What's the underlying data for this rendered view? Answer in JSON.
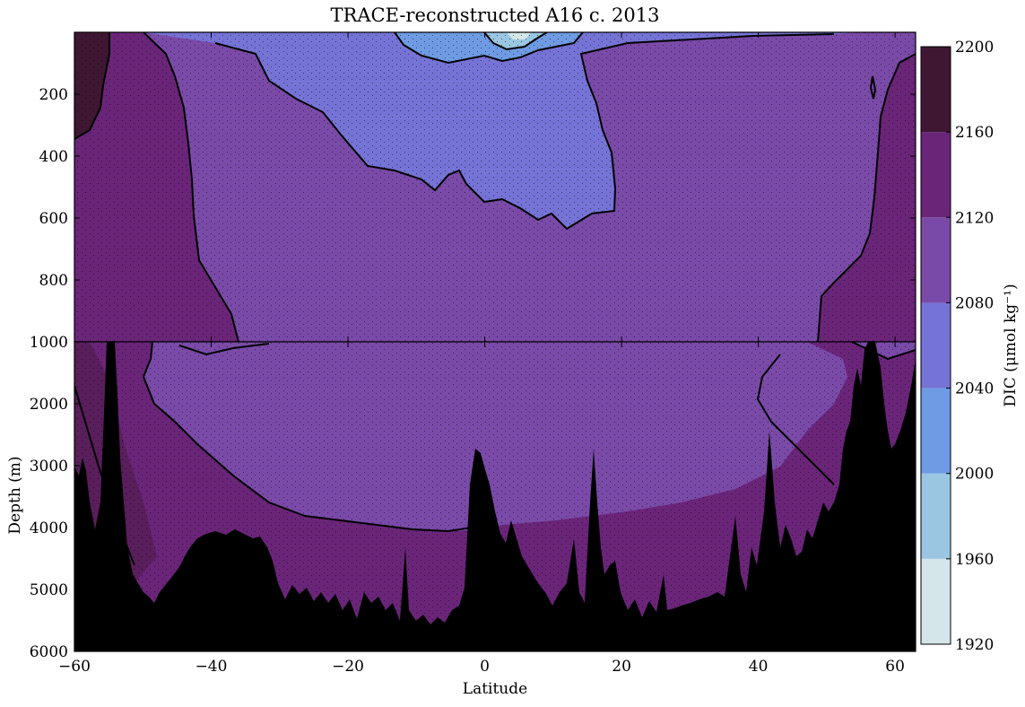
{
  "chart_data": {
    "type": "heatmap",
    "title": "TRACE-reconstructed A16 c. 2013",
    "xlabel": "Latitude",
    "ylabel": "Depth (m)",
    "xlim": [
      -60,
      63
    ],
    "x_ticks": [
      "−60",
      "−40",
      "−20",
      "0",
      "20",
      "40",
      "60"
    ],
    "x_tick_values": [
      -60,
      -40,
      -20,
      0,
      20,
      40,
      60
    ],
    "upper_panel": {
      "ylim": [
        1000,
        0
      ],
      "y_ticks": [
        "200",
        "400",
        "600",
        "800",
        "1000"
      ],
      "y_tick_values": [
        200,
        400,
        600,
        800,
        1000
      ]
    },
    "lower_panel": {
      "ylim": [
        6000,
        1000
      ],
      "y_ticks": [
        "1000",
        "2000",
        "3000",
        "4000",
        "5000",
        "6000"
      ],
      "y_tick_values": [
        1000,
        2000,
        3000,
        4000,
        5000,
        6000
      ]
    },
    "colorbar": {
      "label": "DIC (μmol kg⁻¹)",
      "levels": [
        1920,
        1960,
        2000,
        2040,
        2080,
        2120,
        2160,
        2200
      ],
      "tick_labels": [
        "1920",
        "1960",
        "2000",
        "2040",
        "2080",
        "2120",
        "2160",
        "2200"
      ],
      "colors": [
        "#d4e6e9",
        "#9ac6e1",
        "#6e9be3",
        "#7673d6",
        "#7a4aa8",
        "#6a2579",
        "#3f1733"
      ]
    }
  }
}
